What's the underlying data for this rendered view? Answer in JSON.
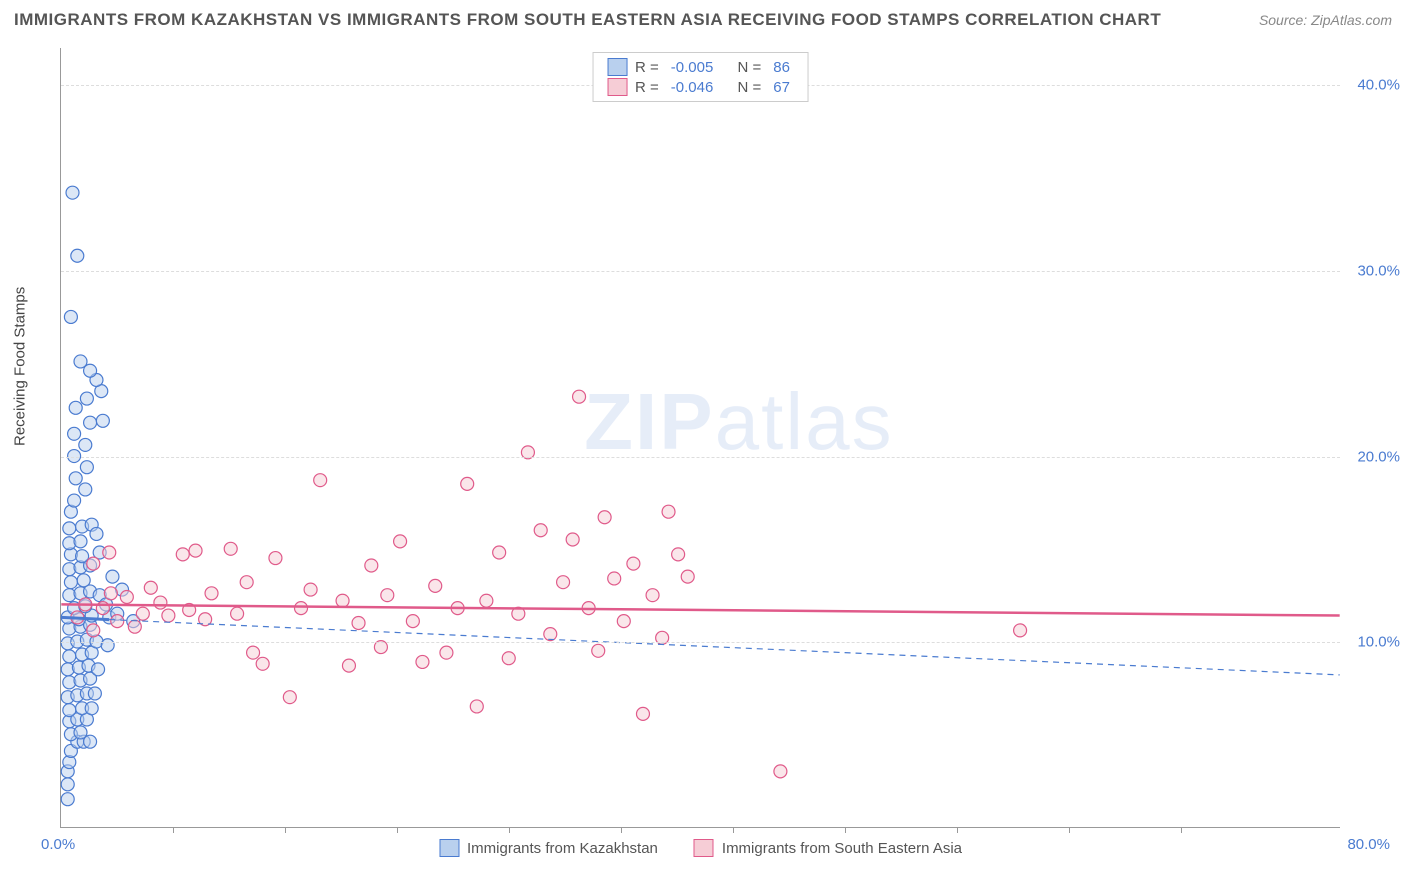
{
  "title": "IMMIGRANTS FROM KAZAKHSTAN VS IMMIGRANTS FROM SOUTH EASTERN ASIA RECEIVING FOOD STAMPS CORRELATION CHART",
  "source": "Source: ZipAtlas.com",
  "ylabel": "Receiving Food Stamps",
  "watermark_a": "ZIP",
  "watermark_b": "atlas",
  "chart": {
    "type": "scatter",
    "xlim": [
      0,
      80
    ],
    "ylim": [
      0,
      42
    ],
    "yticks": [
      {
        "v": 10,
        "label": "10.0%"
      },
      {
        "v": 20,
        "label": "20.0%"
      },
      {
        "v": 30,
        "label": "30.0%"
      },
      {
        "v": 40,
        "label": "40.0%"
      }
    ],
    "xtick_marks": [
      7,
      14,
      21,
      28,
      35,
      42,
      49,
      56,
      63,
      70
    ],
    "xtick_zero": "0.0%",
    "xtick_max": "80.0%",
    "background_color": "#ffffff",
    "grid_color": "#dddddd",
    "marker_radius": 6.5,
    "marker_stroke_width": 1.2,
    "marker_opacity": 0.5,
    "series": [
      {
        "id": "kazakhstan",
        "label": "Immigrants from Kazakhstan",
        "fill": "#b9d0ee",
        "stroke": "#4a7bd0",
        "R_label": "R =",
        "R": "-0.005",
        "N_label": "N =",
        "N": "86",
        "trend": {
          "y0": 11.3,
          "y1": 8.2,
          "dash": "6,5",
          "width": 1.2,
          "color": "#4a7bd0"
        },
        "trend_solid_until_x": 3,
        "points": [
          [
            0.4,
            1.5
          ],
          [
            0.4,
            2.3
          ],
          [
            0.4,
            3.0
          ],
          [
            0.5,
            3.5
          ],
          [
            0.6,
            4.1
          ],
          [
            1.0,
            4.6
          ],
          [
            1.4,
            4.6
          ],
          [
            1.8,
            4.6
          ],
          [
            0.6,
            5.0
          ],
          [
            1.2,
            5.1
          ],
          [
            0.5,
            5.7
          ],
          [
            1.0,
            5.8
          ],
          [
            1.6,
            5.8
          ],
          [
            0.5,
            6.3
          ],
          [
            1.3,
            6.4
          ],
          [
            1.9,
            6.4
          ],
          [
            0.4,
            7.0
          ],
          [
            1.0,
            7.1
          ],
          [
            1.6,
            7.2
          ],
          [
            2.1,
            7.2
          ],
          [
            0.5,
            7.8
          ],
          [
            1.2,
            7.9
          ],
          [
            1.8,
            8.0
          ],
          [
            0.4,
            8.5
          ],
          [
            1.1,
            8.6
          ],
          [
            1.7,
            8.7
          ],
          [
            2.3,
            8.5
          ],
          [
            0.5,
            9.2
          ],
          [
            1.3,
            9.3
          ],
          [
            1.9,
            9.4
          ],
          [
            0.4,
            9.9
          ],
          [
            1.0,
            10.0
          ],
          [
            1.6,
            10.1
          ],
          [
            2.2,
            10.0
          ],
          [
            0.5,
            10.7
          ],
          [
            1.2,
            10.8
          ],
          [
            1.8,
            10.9
          ],
          [
            0.4,
            11.3
          ],
          [
            1.1,
            11.2
          ],
          [
            1.9,
            11.4
          ],
          [
            3.0,
            11.3
          ],
          [
            0.8,
            11.8
          ],
          [
            1.5,
            11.9
          ],
          [
            0.5,
            12.5
          ],
          [
            1.2,
            12.6
          ],
          [
            1.8,
            12.7
          ],
          [
            2.4,
            12.5
          ],
          [
            0.6,
            13.2
          ],
          [
            1.4,
            13.3
          ],
          [
            0.5,
            13.9
          ],
          [
            1.2,
            14.0
          ],
          [
            1.8,
            14.1
          ],
          [
            0.6,
            14.7
          ],
          [
            1.3,
            14.6
          ],
          [
            0.5,
            15.3
          ],
          [
            1.2,
            15.4
          ],
          [
            0.5,
            16.1
          ],
          [
            1.3,
            16.2
          ],
          [
            1.9,
            16.3
          ],
          [
            2.2,
            15.8
          ],
          [
            2.4,
            14.8
          ],
          [
            0.6,
            17.0
          ],
          [
            0.8,
            17.6
          ],
          [
            1.5,
            18.2
          ],
          [
            0.9,
            18.8
          ],
          [
            1.6,
            19.4
          ],
          [
            0.8,
            20.0
          ],
          [
            1.5,
            20.6
          ],
          [
            0.8,
            21.2
          ],
          [
            1.8,
            21.8
          ],
          [
            2.6,
            21.9
          ],
          [
            0.9,
            22.6
          ],
          [
            1.6,
            23.1
          ],
          [
            2.5,
            23.5
          ],
          [
            2.2,
            24.1
          ],
          [
            1.8,
            24.6
          ],
          [
            1.2,
            25.1
          ],
          [
            0.6,
            27.5
          ],
          [
            1.0,
            30.8
          ],
          [
            0.7,
            34.2
          ],
          [
            2.8,
            12.0
          ],
          [
            3.5,
            11.5
          ],
          [
            3.8,
            12.8
          ],
          [
            4.5,
            11.1
          ],
          [
            2.9,
            9.8
          ],
          [
            3.2,
            13.5
          ]
        ]
      },
      {
        "id": "seasia",
        "label": "Immigrants from South Eastern Asia",
        "fill": "#f6cdd6",
        "stroke": "#e05a8a",
        "R_label": "R =",
        "R": "-0.046",
        "N_label": "N =",
        "N": "67",
        "trend": {
          "y0": 12.0,
          "y1": 11.4,
          "dash": "none",
          "width": 2.5,
          "color": "#e05a8a"
        },
        "points": [
          [
            1.0,
            11.3
          ],
          [
            1.5,
            12.0
          ],
          [
            2.0,
            10.6
          ],
          [
            2.6,
            11.8
          ],
          [
            3.1,
            12.6
          ],
          [
            3.5,
            11.1
          ],
          [
            4.1,
            12.4
          ],
          [
            4.6,
            10.8
          ],
          [
            5.1,
            11.5
          ],
          [
            5.6,
            12.9
          ],
          [
            6.2,
            12.1
          ],
          [
            6.7,
            11.4
          ],
          [
            7.6,
            14.7
          ],
          [
            8.0,
            11.7
          ],
          [
            8.4,
            14.9
          ],
          [
            9.0,
            11.2
          ],
          [
            9.4,
            12.6
          ],
          [
            10.6,
            15.0
          ],
          [
            11.0,
            11.5
          ],
          [
            11.6,
            13.2
          ],
          [
            12.0,
            9.4
          ],
          [
            12.6,
            8.8
          ],
          [
            13.4,
            14.5
          ],
          [
            14.3,
            7.0
          ],
          [
            15.0,
            11.8
          ],
          [
            15.6,
            12.8
          ],
          [
            16.2,
            18.7
          ],
          [
            17.6,
            12.2
          ],
          [
            18.0,
            8.7
          ],
          [
            18.6,
            11.0
          ],
          [
            19.4,
            14.1
          ],
          [
            20.0,
            9.7
          ],
          [
            20.4,
            12.5
          ],
          [
            21.2,
            15.4
          ],
          [
            22.0,
            11.1
          ],
          [
            22.6,
            8.9
          ],
          [
            23.4,
            13.0
          ],
          [
            24.1,
            9.4
          ],
          [
            24.8,
            11.8
          ],
          [
            25.4,
            18.5
          ],
          [
            26.0,
            6.5
          ],
          [
            26.6,
            12.2
          ],
          [
            27.4,
            14.8
          ],
          [
            28.0,
            9.1
          ],
          [
            28.6,
            11.5
          ],
          [
            29.2,
            20.2
          ],
          [
            30.0,
            16.0
          ],
          [
            30.6,
            10.4
          ],
          [
            31.4,
            13.2
          ],
          [
            32.0,
            15.5
          ],
          [
            32.4,
            23.2
          ],
          [
            33.0,
            11.8
          ],
          [
            33.6,
            9.5
          ],
          [
            34.0,
            16.7
          ],
          [
            34.6,
            13.4
          ],
          [
            35.2,
            11.1
          ],
          [
            35.8,
            14.2
          ],
          [
            36.4,
            6.1
          ],
          [
            37.0,
            12.5
          ],
          [
            37.6,
            10.2
          ],
          [
            38.0,
            17.0
          ],
          [
            38.6,
            14.7
          ],
          [
            39.2,
            13.5
          ],
          [
            45.0,
            3.0
          ],
          [
            60.0,
            10.6
          ],
          [
            2.0,
            14.2
          ],
          [
            3.0,
            14.8
          ]
        ]
      }
    ]
  }
}
